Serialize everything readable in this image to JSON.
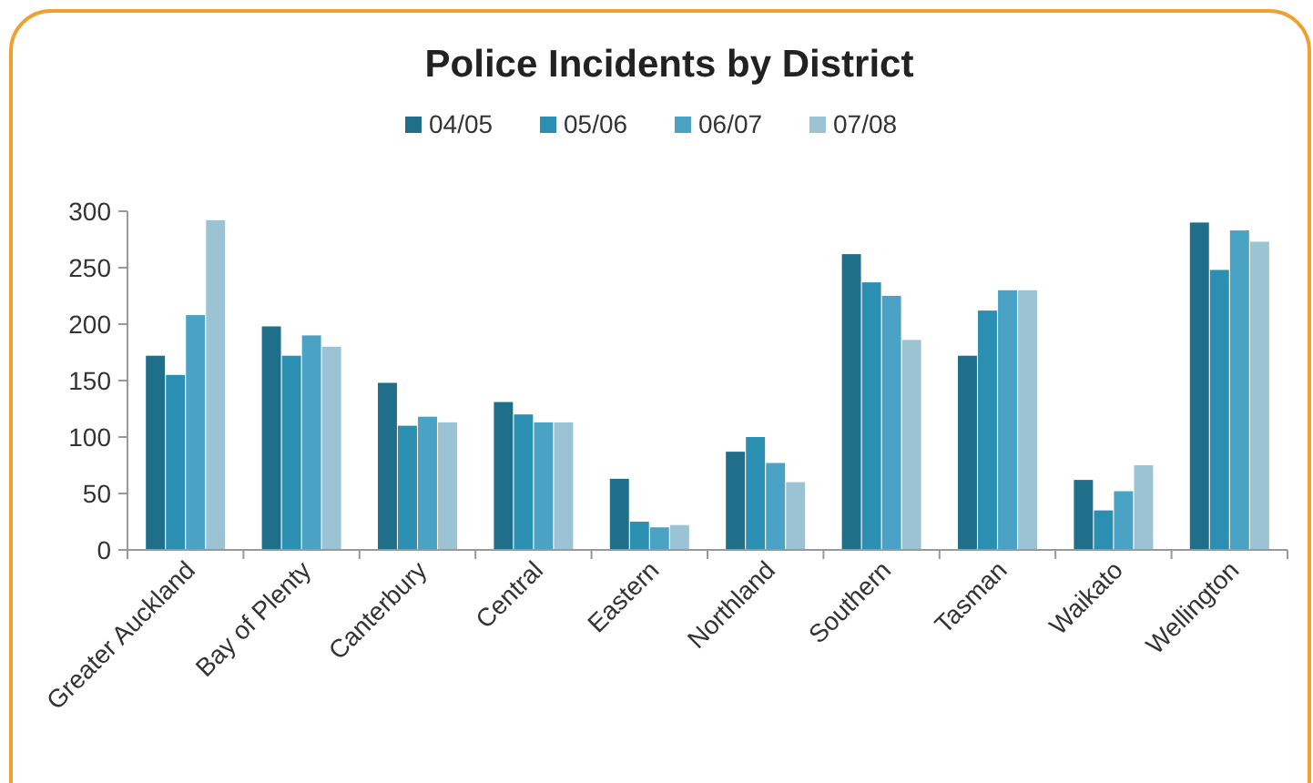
{
  "chart_data": {
    "type": "bar",
    "title": "Police Incidents by District",
    "categories": [
      "Greater Auckland",
      "Bay of Plenty",
      "Canterbury",
      "Central",
      "Eastern",
      "Northland",
      "Southern",
      "Tasman",
      "Waikato",
      "Wellington"
    ],
    "series": [
      {
        "name": "04/05",
        "color": "#1f6f8b",
        "values": [
          172,
          198,
          148,
          131,
          63,
          87,
          262,
          172,
          62,
          290
        ]
      },
      {
        "name": "05/06",
        "color": "#2a8fb0",
        "values": [
          155,
          172,
          110,
          120,
          25,
          100,
          237,
          212,
          35,
          248
        ]
      },
      {
        "name": "06/07",
        "color": "#4aa3c4",
        "values": [
          208,
          190,
          118,
          113,
          20,
          77,
          225,
          230,
          52,
          283
        ]
      },
      {
        "name": "07/08",
        "color": "#9cc3d3",
        "values": [
          292,
          180,
          113,
          113,
          22,
          60,
          186,
          230,
          75,
          273
        ]
      }
    ],
    "ylim": [
      0,
      300
    ],
    "yticks": [
      0,
      50,
      100,
      150,
      200,
      250,
      300
    ],
    "grid": false,
    "legend": "top"
  }
}
